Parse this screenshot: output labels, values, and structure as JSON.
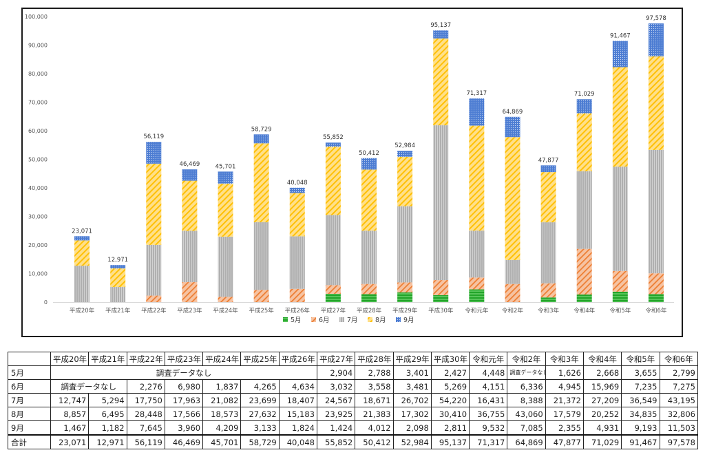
{
  "chart_data": {
    "type": "bar",
    "stacked": true,
    "categories": [
      "平成20年",
      "平成21年",
      "平成22年",
      "平成23年",
      "平成24年",
      "平成25年",
      "平成26年",
      "平成27年",
      "平成28年",
      "平成29年",
      "平成30年",
      "令和元年",
      "令和2年",
      "令和3年",
      "令和4年",
      "令和5年",
      "令和6年"
    ],
    "series": [
      {
        "name": "5月",
        "color": "#2eb82e",
        "values": [
          null,
          null,
          null,
          null,
          null,
          null,
          null,
          2904,
          2788,
          3401,
          2427,
          4448,
          null,
          1626,
          2668,
          3655,
          2799
        ]
      },
      {
        "name": "6月",
        "color": "#ed7d31",
        "values": [
          null,
          null,
          2276,
          6980,
          1837,
          4265,
          4634,
          3032,
          3558,
          3481,
          5269,
          4151,
          6336,
          4945,
          15969,
          7235,
          7275
        ]
      },
      {
        "name": "7月",
        "color": "#a5a5a5",
        "values": [
          12747,
          5294,
          17750,
          17963,
          21082,
          23699,
          18407,
          24567,
          18671,
          26702,
          54220,
          16431,
          8388,
          21372,
          27209,
          36549,
          43195
        ]
      },
      {
        "name": "8月",
        "color": "#ffc000",
        "values": [
          8857,
          6495,
          28448,
          17566,
          18573,
          27632,
          15183,
          23925,
          21383,
          17302,
          30410,
          36755,
          43060,
          17579,
          20252,
          34835,
          32806
        ]
      },
      {
        "name": "9月",
        "color": "#4472c4",
        "values": [
          1467,
          1182,
          7645,
          3960,
          4209,
          3133,
          1824,
          1424,
          4012,
          2098,
          2811,
          9532,
          7085,
          2355,
          4931,
          9193,
          11503
        ]
      }
    ],
    "totals": [
      23071,
      12971,
      56119,
      46469,
      45701,
      58729,
      40048,
      55852,
      50412,
      52984,
      95137,
      71317,
      64869,
      47877,
      71029,
      91467,
      97578
    ],
    "total_labels": [
      "23,071",
      "12,971",
      "56,119",
      "46,469",
      "45,701",
      "58,729",
      "40,048",
      "55,852",
      "50,412",
      "52,984",
      "95,137",
      "71,317",
      "64,869",
      "47,877",
      "71,029",
      "91,467",
      "97,578"
    ],
    "ylim": [
      0,
      100000
    ],
    "yticks": [
      "0",
      "10,000",
      "20,000",
      "30,000",
      "40,000",
      "50,000",
      "60,000",
      "70,000",
      "80,000",
      "90,000",
      "100,000"
    ],
    "legend_position": "bottom",
    "grid": false
  },
  "table": {
    "header": [
      "",
      "平成20年",
      "平成21年",
      "平成22年",
      "平成23年",
      "平成24年",
      "平成25年",
      "平成26年",
      "平成27年",
      "平成28年",
      "平成29年",
      "平成30年",
      "令和元年",
      "令和2年",
      "令和3年",
      "令和4年",
      "令和5年",
      "令和6年"
    ],
    "rows": [
      {
        "label": "5月",
        "cells": [
          {
            "text": "調査データなし",
            "span": 7,
            "kind": "nodata"
          },
          {
            "text": "2,904"
          },
          {
            "text": "2,788"
          },
          {
            "text": "3,401"
          },
          {
            "text": "2,427"
          },
          {
            "text": "4,448"
          },
          {
            "text": "調査データなし",
            "kind": "nodata-small"
          },
          {
            "text": "1,626"
          },
          {
            "text": "2,668"
          },
          {
            "text": "3,655"
          },
          {
            "text": "2,799"
          }
        ]
      },
      {
        "label": "6月",
        "cells": [
          {
            "text": "調査データなし",
            "span": 2,
            "kind": "nodata"
          },
          {
            "text": "2,276"
          },
          {
            "text": "6,980"
          },
          {
            "text": "1,837"
          },
          {
            "text": "4,265"
          },
          {
            "text": "4,634"
          },
          {
            "text": "3,032"
          },
          {
            "text": "3,558"
          },
          {
            "text": "3,481"
          },
          {
            "text": "5,269"
          },
          {
            "text": "4,151"
          },
          {
            "text": "6,336"
          },
          {
            "text": "4,945"
          },
          {
            "text": "15,969"
          },
          {
            "text": "7,235"
          },
          {
            "text": "7,275"
          }
        ]
      },
      {
        "label": "7月",
        "cells": [
          {
            "text": "12,747"
          },
          {
            "text": "5,294"
          },
          {
            "text": "17,750"
          },
          {
            "text": "17,963"
          },
          {
            "text": "21,082"
          },
          {
            "text": "23,699"
          },
          {
            "text": "18,407"
          },
          {
            "text": "24,567"
          },
          {
            "text": "18,671"
          },
          {
            "text": "26,702"
          },
          {
            "text": "54,220"
          },
          {
            "text": "16,431"
          },
          {
            "text": "8,388"
          },
          {
            "text": "21,372"
          },
          {
            "text": "27,209"
          },
          {
            "text": "36,549"
          },
          {
            "text": "43,195"
          }
        ]
      },
      {
        "label": "8月",
        "cells": [
          {
            "text": "8,857"
          },
          {
            "text": "6,495"
          },
          {
            "text": "28,448"
          },
          {
            "text": "17,566"
          },
          {
            "text": "18,573"
          },
          {
            "text": "27,632"
          },
          {
            "text": "15,183"
          },
          {
            "text": "23,925"
          },
          {
            "text": "21,383"
          },
          {
            "text": "17,302"
          },
          {
            "text": "30,410"
          },
          {
            "text": "36,755"
          },
          {
            "text": "43,060"
          },
          {
            "text": "17,579"
          },
          {
            "text": "20,252"
          },
          {
            "text": "34,835"
          },
          {
            "text": "32,806"
          }
        ]
      },
      {
        "label": "9月",
        "cells": [
          {
            "text": "1,467"
          },
          {
            "text": "1,182"
          },
          {
            "text": "7,645"
          },
          {
            "text": "3,960"
          },
          {
            "text": "4,209"
          },
          {
            "text": "3,133"
          },
          {
            "text": "1,824"
          },
          {
            "text": "1,424"
          },
          {
            "text": "4,012"
          },
          {
            "text": "2,098"
          },
          {
            "text": "2,811"
          },
          {
            "text": "9,532"
          },
          {
            "text": "7,085"
          },
          {
            "text": "2,355"
          },
          {
            "text": "4,931"
          },
          {
            "text": "9,193"
          },
          {
            "text": "11,503"
          }
        ]
      },
      {
        "label": "合計",
        "total": true,
        "cells": [
          {
            "text": "23,071"
          },
          {
            "text": "12,971"
          },
          {
            "text": "56,119"
          },
          {
            "text": "46,469"
          },
          {
            "text": "45,701"
          },
          {
            "text": "58,729"
          },
          {
            "text": "40,048"
          },
          {
            "text": "55,852"
          },
          {
            "text": "50,412"
          },
          {
            "text": "52,984"
          },
          {
            "text": "95,137"
          },
          {
            "text": "71,317"
          },
          {
            "text": "64,869"
          },
          {
            "text": "47,877"
          },
          {
            "text": "71,029"
          },
          {
            "text": "91,467"
          },
          {
            "text": "97,578"
          }
        ]
      }
    ]
  }
}
